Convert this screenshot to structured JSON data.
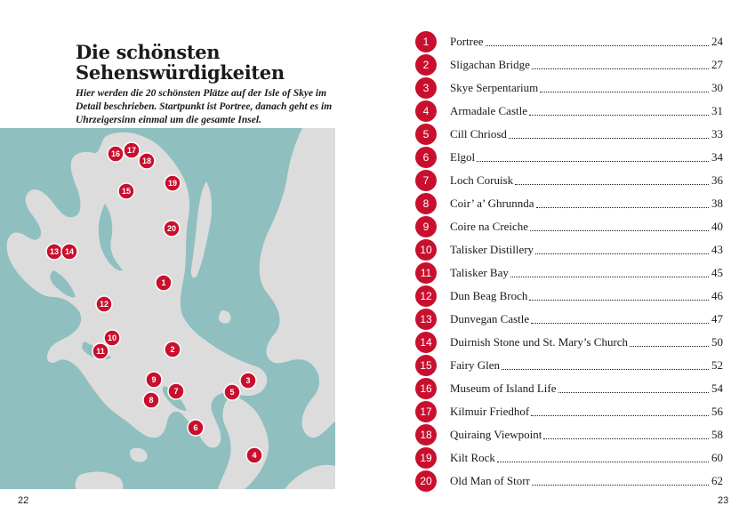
{
  "left_page": {
    "title_line1": "Die schönsten",
    "title_line2": "Sehenswürdigkeiten",
    "intro": "Hier werden die 20 schönsten Plätze auf der Isle of Skye im Detail beschrieben. Startpunkt ist Portree, danach geht es im Uhrzeigersinn einmal um die gesamte Insel.",
    "page_number": "22",
    "map": {
      "water_color": "#8fbfbf",
      "land_color": "#dcdcdc",
      "marker_color": "#c8102e",
      "markers": [
        "1",
        "2",
        "3",
        "4",
        "5",
        "6",
        "7",
        "8",
        "9",
        "10",
        "11",
        "12",
        "13",
        "14",
        "15",
        "16",
        "17",
        "18",
        "19",
        "20"
      ]
    }
  },
  "right_page": {
    "page_number": "23",
    "toc": [
      {
        "num": "1",
        "title": "Portree",
        "page": "24"
      },
      {
        "num": "2",
        "title": "Sligachan Bridge",
        "page": "27"
      },
      {
        "num": "3",
        "title": "Skye Serpentarium",
        "page": "30"
      },
      {
        "num": "4",
        "title": "Armadale Castle",
        "page": "31"
      },
      {
        "num": "5",
        "title": "Cill Chriosd",
        "page": "33"
      },
      {
        "num": "6",
        "title": "Elgol",
        "page": "34"
      },
      {
        "num": "7",
        "title": "Loch Coruisk",
        "page": "36"
      },
      {
        "num": "8",
        "title": "Coir’ a’ Ghrunnda",
        "page": "38"
      },
      {
        "num": "9",
        "title": "Coire na Creiche",
        "page": "40"
      },
      {
        "num": "10",
        "title": "Talisker Distillery",
        "page": "43"
      },
      {
        "num": "11",
        "title": "Talisker Bay",
        "page": "45"
      },
      {
        "num": "12",
        "title": "Dun Beag Broch",
        "page": "46"
      },
      {
        "num": "13",
        "title": "Dunvegan Castle",
        "page": "47"
      },
      {
        "num": "14",
        "title": "Duirnish Stone und St. Mary’s Church",
        "page": "50"
      },
      {
        "num": "15",
        "title": "Fairy Glen",
        "page": "52"
      },
      {
        "num": "16",
        "title": "Museum of Island Life",
        "page": "54"
      },
      {
        "num": "17",
        "title": "Kilmuir Friedhof",
        "page": "56"
      },
      {
        "num": "18",
        "title": "Quiraing Viewpoint",
        "page": "58"
      },
      {
        "num": "19",
        "title": "Kilt Rock",
        "page": "60"
      },
      {
        "num": "20",
        "title": "Old Man of Storr",
        "page": "62"
      }
    ]
  }
}
